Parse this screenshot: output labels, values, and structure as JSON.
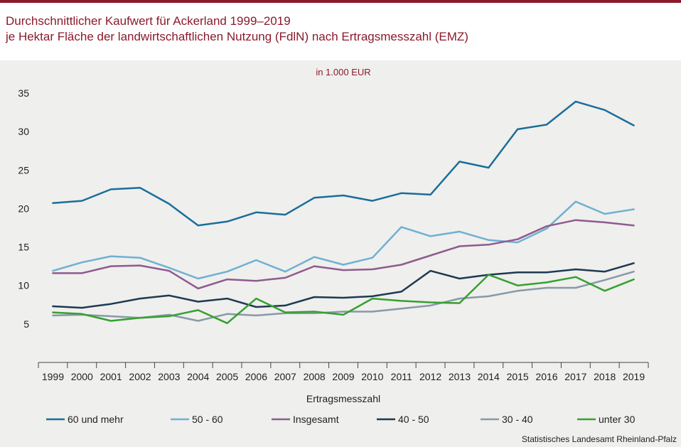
{
  "title_line1": "Durchschnittlicher Kaufwert für Ackerland 1999–2019",
  "title_line2": "je Hektar Fläche der landwirtschaftlichen Nutzung (FdlN) nach Ertragsmesszahl (EMZ)",
  "source": "Statistisches Landesamt Rheinland-Pfalz",
  "chart_data": {
    "type": "line",
    "unit_label": "in 1.000 EUR",
    "xlabel": "Ertragsmesszahl",
    "ylabel": "",
    "grid": false,
    "legend_position": "bottom",
    "ylim": [
      0,
      35
    ],
    "yticks": [
      5,
      10,
      15,
      20,
      25,
      30,
      35
    ],
    "x": [
      "1999",
      "2000",
      "2001",
      "2002",
      "2003",
      "2004",
      "2005",
      "2006",
      "2007",
      "2008",
      "2009",
      "2010",
      "2011",
      "2012",
      "2013",
      "2014",
      "2015",
      "2016",
      "2017",
      "2018",
      "2019"
    ],
    "series": [
      {
        "name": "60 und mehr",
        "color": "#1a6e9a",
        "values": [
          20.7,
          21.0,
          22.5,
          22.7,
          20.6,
          17.8,
          18.3,
          19.5,
          19.2,
          21.4,
          21.7,
          21.0,
          22.0,
          21.8,
          26.1,
          25.3,
          30.3,
          30.9,
          33.9,
          32.8,
          30.8
        ]
      },
      {
        "name": "50 - 60",
        "color": "#6fb0d2",
        "values": [
          11.9,
          13.0,
          13.8,
          13.6,
          12.3,
          10.9,
          11.8,
          13.3,
          11.8,
          13.7,
          12.7,
          13.6,
          17.6,
          16.4,
          17.0,
          15.9,
          15.6,
          17.4,
          20.9,
          19.3,
          19.9
        ]
      },
      {
        "name": "Insgesamt",
        "color": "#8e5b8e",
        "values": [
          11.6,
          11.6,
          12.5,
          12.6,
          11.9,
          9.6,
          10.8,
          10.6,
          11.0,
          12.5,
          12.0,
          12.1,
          12.7,
          13.9,
          15.1,
          15.3,
          16.0,
          17.7,
          18.5,
          18.2,
          17.8
        ]
      },
      {
        "name": "40 - 50",
        "color": "#1d3a52",
        "values": [
          7.3,
          7.1,
          7.6,
          8.3,
          8.7,
          7.9,
          8.3,
          7.2,
          7.4,
          8.5,
          8.4,
          8.6,
          9.2,
          11.9,
          10.9,
          11.4,
          11.7,
          11.7,
          12.1,
          11.8,
          12.9
        ]
      },
      {
        "name": "30 - 40",
        "color": "#8799a8",
        "values": [
          6.1,
          6.2,
          6.0,
          5.8,
          6.2,
          5.4,
          6.3,
          6.1,
          6.4,
          6.4,
          6.6,
          6.6,
          7.0,
          7.4,
          8.3,
          8.6,
          9.3,
          9.7,
          9.7,
          10.7,
          11.8
        ]
      },
      {
        "name": "unter 30",
        "color": "#36a030",
        "values": [
          6.5,
          6.3,
          5.4,
          5.8,
          6.0,
          6.8,
          5.1,
          8.3,
          6.5,
          6.6,
          6.2,
          8.3,
          8.0,
          7.8,
          7.7,
          11.4,
          10.0,
          10.4,
          11.1,
          9.3,
          10.8
        ]
      }
    ]
  }
}
